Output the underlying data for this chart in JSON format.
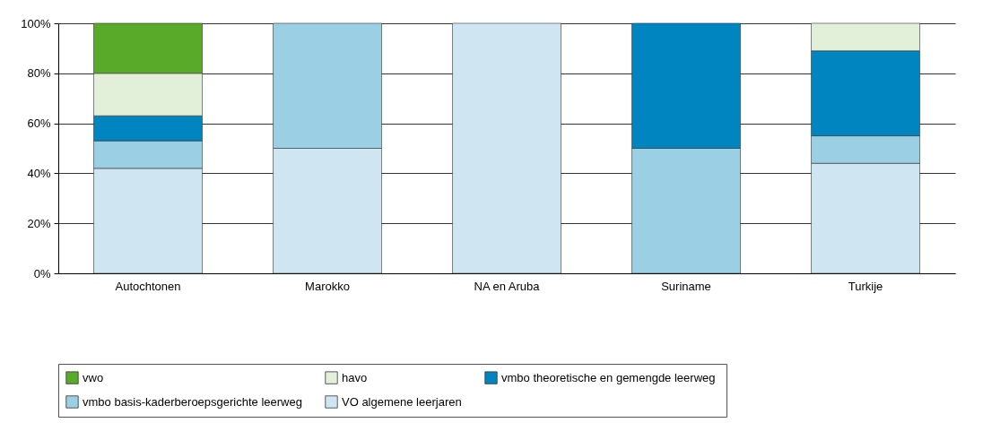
{
  "chart_data": {
    "type": "bar",
    "stacked": true,
    "categories": [
      "Autochtonen",
      "Marokko",
      "NA en Aruba",
      "Suriname",
      "Turkije"
    ],
    "series": [
      {
        "name": "VO algemene leerjaren",
        "color": "#cfe6f2",
        "values": [
          42,
          50,
          100,
          null,
          44
        ]
      },
      {
        "name": "vmbo basis-kaderberoepsgerichte leerweg",
        "color": "#9bcfe4",
        "values": [
          11,
          50,
          null,
          50,
          11
        ]
      },
      {
        "name": "vmbo theoretische en gemengde  leerweg",
        "color": "#0085c0",
        "values": [
          10,
          null,
          null,
          50,
          34
        ]
      },
      {
        "name": "havo",
        "color": "#e2efd9",
        "values": [
          17,
          null,
          null,
          null,
          11
        ]
      },
      {
        "name": "vwo",
        "color": "#5aaa2a",
        "values": [
          20,
          null,
          null,
          null,
          null
        ]
      }
    ],
    "ylim": [
      0,
      100
    ],
    "yticks": [
      {
        "value": 0,
        "label": "0%"
      },
      {
        "value": 20,
        "label": "20%"
      },
      {
        "value": 40,
        "label": "40%"
      },
      {
        "value": 60,
        "label": "60%"
      },
      {
        "value": 80,
        "label": "80%"
      },
      {
        "value": 100,
        "label": "100%"
      }
    ],
    "grid": "y",
    "legend": "bottom"
  }
}
